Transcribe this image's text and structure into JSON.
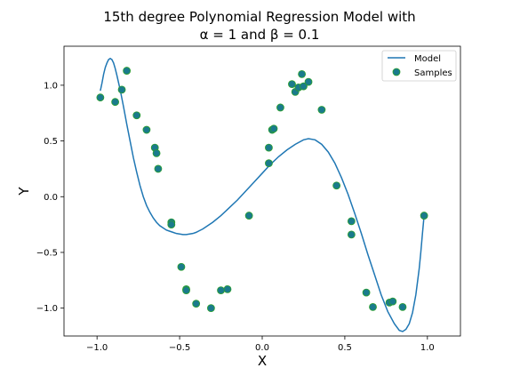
{
  "chart_data": {
    "type": "scatter",
    "title_line1": "15th degree Polynomial Regression Model with",
    "title_line2": "α = 1 and β = 0.1",
    "xlabel": "X",
    "ylabel": "Y",
    "xlim": [
      -1.2,
      1.2
    ],
    "ylim": [
      -1.25,
      1.35
    ],
    "xticks": [
      -1.0,
      -0.5,
      0.0,
      0.5,
      1.0
    ],
    "xtick_labels": [
      "−1.0",
      "−0.5",
      "0.0",
      "0.5",
      "1.0"
    ],
    "yticks": [
      -1.0,
      -0.5,
      0.0,
      0.5,
      1.0
    ],
    "ytick_labels": [
      "−1.0",
      "−0.5",
      "0.0",
      "0.5",
      "1.0"
    ],
    "grid": false,
    "legend_position": "top-right",
    "colors": {
      "model": "#1f77b4",
      "samples_fill": "#1a7b8c",
      "samples_edge": "#2ca02c"
    },
    "series": [
      {
        "name": "Model",
        "kind": "line",
        "x": [
          -0.98,
          -0.97,
          -0.96,
          -0.95,
          -0.94,
          -0.93,
          -0.92,
          -0.91,
          -0.9,
          -0.89,
          -0.88,
          -0.86,
          -0.84,
          -0.82,
          -0.8,
          -0.78,
          -0.76,
          -0.74,
          -0.72,
          -0.7,
          -0.68,
          -0.66,
          -0.64,
          -0.62,
          -0.6,
          -0.58,
          -0.56,
          -0.54,
          -0.52,
          -0.5,
          -0.48,
          -0.46,
          -0.44,
          -0.42,
          -0.4,
          -0.38,
          -0.36,
          -0.34,
          -0.32,
          -0.3,
          -0.25,
          -0.2,
          -0.15,
          -0.1,
          -0.05,
          0.0,
          0.05,
          0.1,
          0.15,
          0.2,
          0.25,
          0.28,
          0.32,
          0.36,
          0.4,
          0.44,
          0.48,
          0.52,
          0.56,
          0.6,
          0.64,
          0.68,
          0.72,
          0.76,
          0.8,
          0.83,
          0.85,
          0.87,
          0.89,
          0.91,
          0.93,
          0.95,
          0.96,
          0.97,
          0.98
        ],
        "y": [
          0.95,
          1.02,
          1.1,
          1.16,
          1.2,
          1.23,
          1.24,
          1.23,
          1.2,
          1.15,
          1.09,
          0.96,
          0.81,
          0.65,
          0.5,
          0.35,
          0.22,
          0.1,
          -0.0,
          -0.08,
          -0.14,
          -0.19,
          -0.23,
          -0.26,
          -0.28,
          -0.3,
          -0.31,
          -0.32,
          -0.33,
          -0.335,
          -0.34,
          -0.34,
          -0.335,
          -0.33,
          -0.32,
          -0.305,
          -0.29,
          -0.27,
          -0.25,
          -0.23,
          -0.17,
          -0.1,
          -0.03,
          0.05,
          0.13,
          0.21,
          0.29,
          0.36,
          0.42,
          0.47,
          0.51,
          0.52,
          0.51,
          0.47,
          0.4,
          0.3,
          0.17,
          0.02,
          -0.15,
          -0.33,
          -0.52,
          -0.7,
          -0.88,
          -1.03,
          -1.14,
          -1.2,
          -1.21,
          -1.19,
          -1.14,
          -1.04,
          -0.88,
          -0.65,
          -0.5,
          -0.33,
          -0.17
        ]
      },
      {
        "name": "Samples",
        "kind": "scatter",
        "x": [
          -0.98,
          -0.89,
          -0.85,
          -0.82,
          -0.76,
          -0.7,
          -0.65,
          -0.64,
          -0.63,
          -0.55,
          -0.55,
          -0.49,
          -0.46,
          -0.46,
          -0.4,
          -0.31,
          -0.25,
          -0.21,
          -0.08,
          0.04,
          0.04,
          0.06,
          0.07,
          0.11,
          0.18,
          0.2,
          0.22,
          0.24,
          0.25,
          0.28,
          0.36,
          0.45,
          0.54,
          0.54,
          0.63,
          0.67,
          0.77,
          0.79,
          0.85,
          0.98
        ],
        "y": [
          0.89,
          0.85,
          0.96,
          1.13,
          0.73,
          0.6,
          0.44,
          0.39,
          0.25,
          -0.23,
          -0.25,
          -0.63,
          -0.83,
          -0.84,
          -0.96,
          -1.0,
          -0.84,
          -0.83,
          -0.17,
          0.44,
          0.3,
          0.6,
          0.61,
          0.8,
          1.01,
          0.94,
          0.98,
          1.1,
          0.99,
          1.03,
          0.78,
          0.1,
          -0.22,
          -0.34,
          -0.86,
          -0.99,
          -0.95,
          -0.94,
          -0.99,
          -0.17
        ]
      }
    ]
  }
}
